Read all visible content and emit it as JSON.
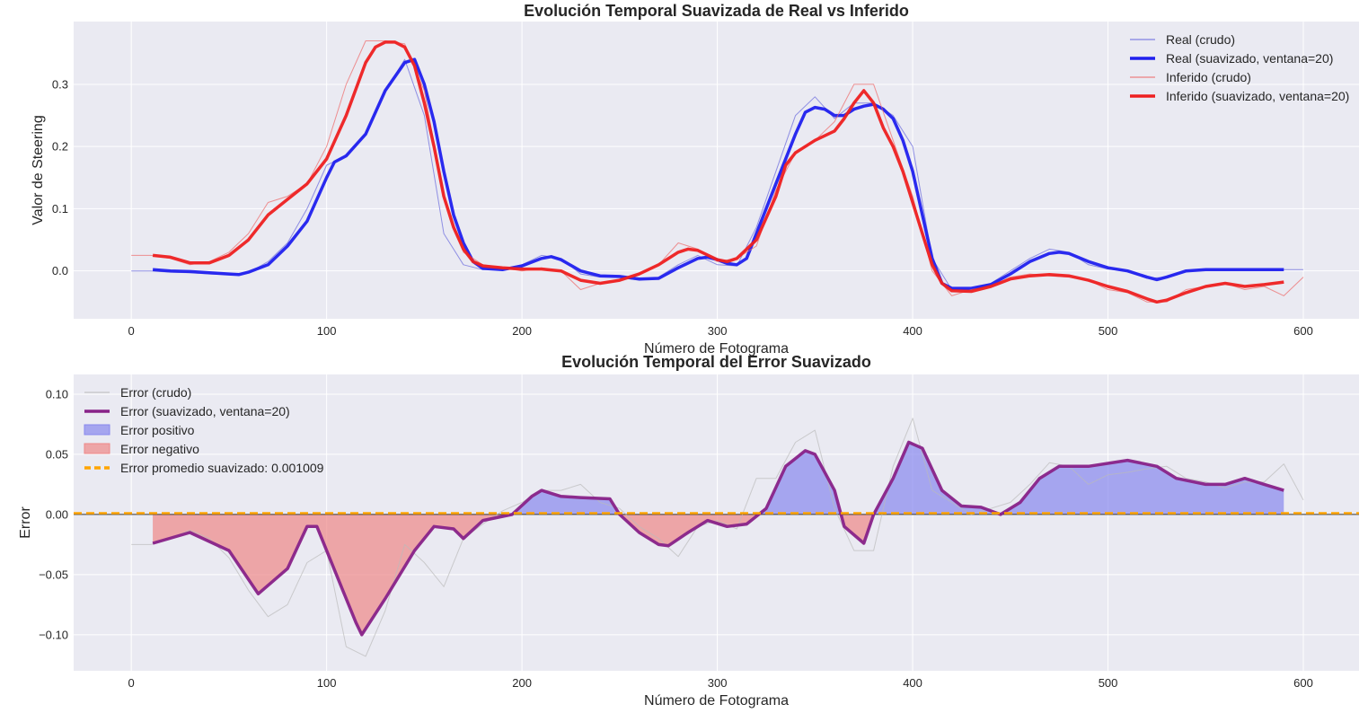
{
  "chart_data": [
    {
      "type": "line",
      "title": "Evolución Temporal Suavizada de Real vs Inferido",
      "xlabel": "Número de Fotograma",
      "ylabel": "Valor de Steering",
      "xlim": [
        -29.5,
        628.5
      ],
      "ylim": [
        -0.077,
        0.401
      ],
      "xticks": [
        0,
        100,
        200,
        300,
        400,
        500,
        600
      ],
      "yticks": [
        0.0,
        0.1,
        0.2,
        0.3
      ],
      "ytick_labels": [
        "0.0",
        "0.1",
        "0.2",
        "0.3"
      ],
      "grid": true,
      "legend_position": "top-right",
      "series": [
        {
          "name": "Real (crudo)",
          "color": "#6666dd",
          "style": "thin",
          "x": [
            0,
            10,
            20,
            30,
            40,
            50,
            60,
            70,
            80,
            90,
            100,
            110,
            120,
            130,
            140,
            150,
            160,
            170,
            180,
            190,
            200,
            210,
            220,
            230,
            240,
            250,
            260,
            270,
            280,
            290,
            300,
            310,
            320,
            330,
            340,
            350,
            360,
            370,
            380,
            390,
            400,
            410,
            420,
            430,
            440,
            450,
            460,
            470,
            480,
            490,
            500,
            510,
            520,
            530,
            540,
            550,
            560,
            570,
            580,
            590,
            600
          ],
          "y": [
            0.0,
            0.0,
            -0.002,
            -0.003,
            -0.005,
            -0.006,
            -0.003,
            0.015,
            0.045,
            0.1,
            0.17,
            0.185,
            0.22,
            0.29,
            0.34,
            0.25,
            0.06,
            0.01,
            0.002,
            0.003,
            0.01,
            0.025,
            0.02,
            -0.005,
            -0.01,
            -0.01,
            -0.015,
            -0.01,
            0.01,
            0.025,
            0.01,
            0.008,
            0.07,
            0.16,
            0.25,
            0.28,
            0.245,
            0.27,
            0.27,
            0.25,
            0.2,
            0.02,
            -0.03,
            -0.03,
            -0.02,
            0.0,
            0.02,
            0.035,
            0.03,
            0.01,
            0.003,
            0.0,
            -0.012,
            -0.01,
            0.0,
            0.002,
            0.002,
            0.002,
            0.002,
            0.002,
            0.002
          ]
        },
        {
          "name": "Real (suavizado, ventana=20)",
          "color": "#2020ee",
          "style": "thick",
          "x": [
            11,
            20,
            30,
            40,
            50,
            55,
            60,
            70,
            80,
            90,
            100,
            104,
            110,
            120,
            130,
            140,
            145,
            150,
            155,
            160,
            165,
            170,
            175,
            180,
            190,
            200,
            210,
            215,
            220,
            230,
            240,
            250,
            260,
            270,
            280,
            290,
            295,
            300,
            305,
            310,
            315,
            320,
            330,
            340,
            345,
            350,
            355,
            360,
            365,
            370,
            375,
            380,
            385,
            390,
            395,
            400,
            405,
            410,
            415,
            420,
            430,
            440,
            450,
            460,
            470,
            475,
            480,
            490,
            500,
            510,
            520,
            525,
            530,
            540,
            550,
            560,
            570,
            580,
            590
          ],
          "y": [
            0.002,
            0.0,
            -0.001,
            -0.003,
            -0.005,
            -0.006,
            -0.002,
            0.01,
            0.04,
            0.08,
            0.15,
            0.175,
            0.185,
            0.22,
            0.29,
            0.335,
            0.34,
            0.3,
            0.24,
            0.16,
            0.09,
            0.045,
            0.015,
            0.004,
            0.002,
            0.008,
            0.02,
            0.023,
            0.018,
            0.0,
            -0.008,
            -0.009,
            -0.013,
            -0.012,
            0.005,
            0.02,
            0.022,
            0.018,
            0.012,
            0.01,
            0.02,
            0.06,
            0.14,
            0.22,
            0.255,
            0.263,
            0.26,
            0.25,
            0.25,
            0.26,
            0.265,
            0.268,
            0.26,
            0.245,
            0.21,
            0.16,
            0.09,
            0.02,
            -0.02,
            -0.028,
            -0.028,
            -0.022,
            -0.005,
            0.015,
            0.028,
            0.03,
            0.028,
            0.015,
            0.005,
            0.0,
            -0.01,
            -0.014,
            -0.01,
            0.0,
            0.002,
            0.002,
            0.002,
            0.002,
            0.002
          ]
        },
        {
          "name": "Inferido (crudo)",
          "color": "#ee6666",
          "style": "thin",
          "x": [
            0,
            10,
            20,
            30,
            40,
            50,
            60,
            70,
            80,
            90,
            100,
            110,
            120,
            130,
            140,
            150,
            160,
            170,
            180,
            190,
            200,
            210,
            220,
            230,
            240,
            250,
            260,
            270,
            280,
            290,
            300,
            310,
            320,
            330,
            340,
            350,
            360,
            370,
            380,
            390,
            400,
            410,
            420,
            430,
            440,
            450,
            460,
            470,
            480,
            490,
            500,
            510,
            520,
            530,
            540,
            550,
            560,
            570,
            580,
            590,
            600
          ],
          "y": [
            0.025,
            0.025,
            0.02,
            0.01,
            0.015,
            0.03,
            0.06,
            0.11,
            0.12,
            0.14,
            0.2,
            0.3,
            0.37,
            0.37,
            0.365,
            0.29,
            0.12,
            0.03,
            0.01,
            0.005,
            0.0,
            0.005,
            0.0,
            -0.03,
            -0.02,
            -0.015,
            -0.005,
            0.01,
            0.045,
            0.035,
            0.015,
            0.02,
            0.04,
            0.13,
            0.19,
            0.21,
            0.24,
            0.3,
            0.3,
            0.21,
            0.12,
            0.0,
            -0.04,
            -0.03,
            -0.025,
            -0.01,
            -0.005,
            -0.008,
            -0.01,
            -0.015,
            -0.03,
            -0.035,
            -0.05,
            -0.05,
            -0.03,
            -0.025,
            -0.02,
            -0.03,
            -0.025,
            -0.04,
            -0.01
          ]
        },
        {
          "name": "Inferido (suavizado, ventana=20)",
          "color": "#ee2020",
          "style": "thick",
          "x": [
            11,
            20,
            30,
            40,
            50,
            60,
            70,
            80,
            90,
            100,
            110,
            120,
            125,
            130,
            135,
            140,
            145,
            150,
            155,
            160,
            165,
            170,
            175,
            180,
            190,
            200,
            210,
            220,
            230,
            240,
            250,
            260,
            270,
            280,
            285,
            290,
            300,
            305,
            310,
            320,
            330,
            335,
            340,
            345,
            350,
            360,
            365,
            370,
            375,
            380,
            385,
            390,
            395,
            400,
            405,
            410,
            415,
            420,
            430,
            440,
            450,
            460,
            470,
            480,
            490,
            500,
            510,
            520,
            525,
            530,
            540,
            550,
            560,
            570,
            580,
            590
          ],
          "y": [
            0.025,
            0.022,
            0.013,
            0.013,
            0.025,
            0.05,
            0.09,
            0.115,
            0.14,
            0.18,
            0.25,
            0.335,
            0.36,
            0.368,
            0.368,
            0.36,
            0.33,
            0.27,
            0.2,
            0.12,
            0.07,
            0.035,
            0.015,
            0.008,
            0.005,
            0.003,
            0.003,
            0.0,
            -0.015,
            -0.02,
            -0.015,
            -0.005,
            0.01,
            0.03,
            0.035,
            0.033,
            0.018,
            0.015,
            0.02,
            0.05,
            0.12,
            0.17,
            0.19,
            0.2,
            0.21,
            0.225,
            0.245,
            0.27,
            0.29,
            0.27,
            0.23,
            0.2,
            0.16,
            0.11,
            0.06,
            0.01,
            -0.02,
            -0.032,
            -0.033,
            -0.025,
            -0.013,
            -0.008,
            -0.006,
            -0.008,
            -0.015,
            -0.025,
            -0.033,
            -0.045,
            -0.05,
            -0.047,
            -0.035,
            -0.025,
            -0.02,
            -0.025,
            -0.022,
            -0.018
          ]
        }
      ]
    },
    {
      "type": "line",
      "title": "Evolución Temporal del Error Suavizado",
      "xlabel": "Número de Fotograma",
      "ylabel": "Error",
      "xlim": [
        -29.5,
        628.5
      ],
      "ylim": [
        -0.13,
        0.1164
      ],
      "xticks": [
        0,
        100,
        200,
        300,
        400,
        500,
        600
      ],
      "yticks": [
        -0.1,
        -0.05,
        0.0,
        0.05,
        0.1
      ],
      "ytick_labels": [
        "−0.10",
        "−0.05",
        "0.00",
        "0.05",
        "0.10"
      ],
      "grid": true,
      "legend_position": "top-left",
      "series": [
        {
          "name": "Error (crudo)",
          "color": "#bbbbbb",
          "style": "thin",
          "x": [
            0,
            10,
            20,
            30,
            40,
            50,
            60,
            70,
            80,
            90,
            100,
            110,
            120,
            130,
            140,
            150,
            160,
            170,
            180,
            190,
            200,
            210,
            220,
            230,
            240,
            250,
            260,
            270,
            280,
            290,
            300,
            310,
            320,
            330,
            340,
            350,
            360,
            370,
            380,
            390,
            400,
            410,
            420,
            430,
            440,
            450,
            460,
            470,
            480,
            490,
            500,
            510,
            520,
            530,
            540,
            550,
            560,
            570,
            580,
            590,
            600
          ],
          "y": [
            -0.025,
            -0.025,
            -0.02,
            -0.013,
            -0.02,
            -0.036,
            -0.063,
            -0.085,
            -0.075,
            -0.04,
            -0.03,
            -0.11,
            -0.118,
            -0.08,
            -0.025,
            -0.04,
            -0.06,
            -0.02,
            -0.008,
            0.003,
            0.01,
            0.02,
            0.02,
            0.025,
            0.01,
            0.005,
            -0.01,
            -0.02,
            -0.035,
            -0.01,
            -0.005,
            -0.012,
            0.03,
            0.03,
            0.06,
            0.07,
            0.005,
            -0.03,
            -0.03,
            0.04,
            0.08,
            0.02,
            0.01,
            0.0,
            0.005,
            0.01,
            0.025,
            0.043,
            0.04,
            0.025,
            0.033,
            0.035,
            0.038,
            0.04,
            0.03,
            0.027,
            0.022,
            0.027,
            0.027,
            0.042,
            0.012
          ]
        },
        {
          "name": "Error (suavizado, ventana=20)",
          "color": "#882288",
          "style": "thick",
          "x": [
            11,
            30,
            50,
            65,
            80,
            90,
            95,
            105,
            115,
            118,
            130,
            145,
            155,
            165,
            170,
            180,
            195,
            205,
            210,
            220,
            230,
            245,
            250,
            260,
            270,
            275,
            285,
            295,
            305,
            315,
            325,
            335,
            345,
            350,
            360,
            365,
            375,
            380,
            390,
            398,
            405,
            415,
            425,
            435,
            445,
            455,
            465,
            475,
            490,
            510,
            525,
            535,
            550,
            560,
            570,
            580,
            590
          ],
          "y": [
            -0.024,
            -0.015,
            -0.03,
            -0.066,
            -0.045,
            -0.01,
            -0.01,
            -0.05,
            -0.09,
            -0.1,
            -0.07,
            -0.03,
            -0.01,
            -0.012,
            -0.02,
            -0.005,
            0.0,
            0.015,
            0.02,
            0.015,
            0.014,
            0.013,
            0.0,
            -0.015,
            -0.025,
            -0.026,
            -0.015,
            -0.005,
            -0.01,
            -0.008,
            0.005,
            0.04,
            0.053,
            0.05,
            0.02,
            -0.01,
            -0.024,
            0.0,
            0.03,
            0.06,
            0.055,
            0.02,
            0.007,
            0.006,
            0.0,
            0.01,
            0.03,
            0.04,
            0.04,
            0.045,
            0.04,
            0.03,
            0.025,
            0.025,
            0.03,
            0.025,
            0.02
          ]
        }
      ],
      "fills": [
        {
          "name": "Error positivo",
          "color": "#8888ee"
        },
        {
          "name": "Error negativo",
          "color": "#ee8888"
        }
      ],
      "mean_line": {
        "name": "Error promedio suavizado: 0.001009",
        "value": 0.001009,
        "color": "#ffa500"
      }
    }
  ]
}
